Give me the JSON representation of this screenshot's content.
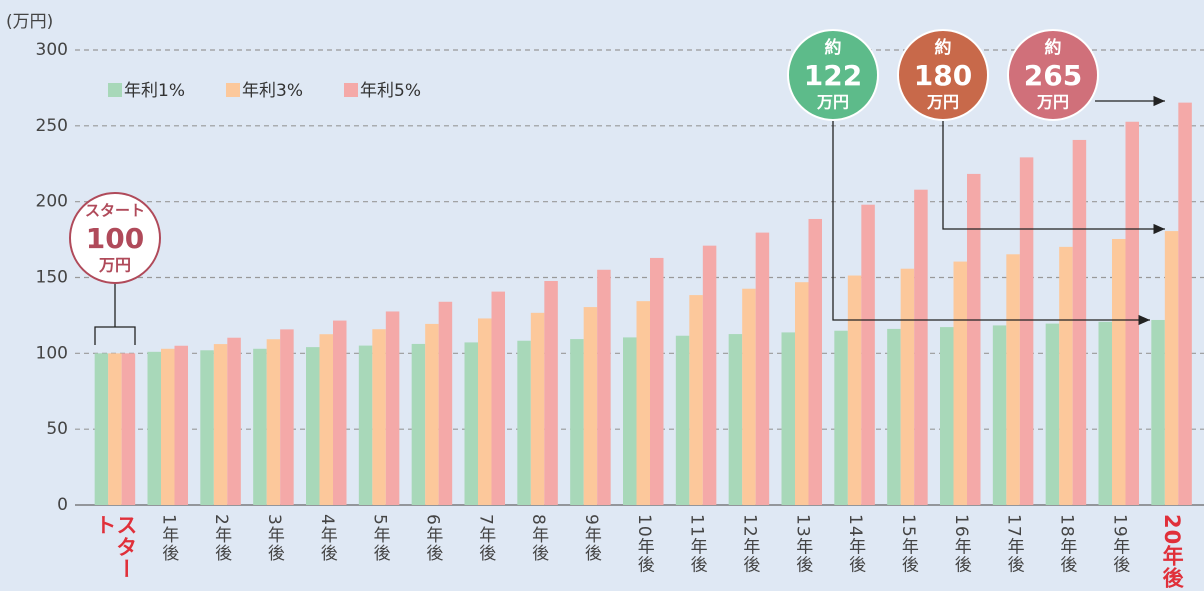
{
  "chart_data": {
    "type": "bar",
    "ylabel": "(万円)",
    "categories": [
      "スタート",
      "1年後",
      "2年後",
      "3年後",
      "4年後",
      "5年後",
      "6年後",
      "7年後",
      "8年後",
      "9年後",
      "10年後",
      "11年後",
      "12年後",
      "13年後",
      "14年後",
      "15年後",
      "16年後",
      "17年後",
      "18年後",
      "19年後",
      "20年後"
    ],
    "series": [
      {
        "name": "年利1%",
        "color": "#a8d8b9",
        "values": [
          100,
          101,
          102,
          103,
          104.1,
          105.1,
          106.2,
          107.2,
          108.3,
          109.4,
          110.5,
          111.6,
          112.7,
          113.8,
          114.9,
          116.1,
          117.3,
          118.4,
          119.6,
          120.8,
          122
        ]
      },
      {
        "name": "年利3%",
        "color": "#fcc89b",
        "values": [
          100,
          103,
          106.1,
          109.3,
          112.6,
          115.9,
          119.4,
          123,
          126.7,
          130.5,
          134.4,
          138.4,
          142.6,
          146.9,
          151.3,
          155.8,
          160.5,
          165.3,
          170.2,
          175.4,
          180.6
        ]
      },
      {
        "name": "年利5%",
        "color": "#f4a9a8",
        "values": [
          100,
          105,
          110.3,
          115.8,
          121.6,
          127.6,
          134,
          140.7,
          147.7,
          155.1,
          162.9,
          171,
          179.6,
          188.6,
          198,
          207.9,
          218.3,
          229.2,
          240.7,
          252.7,
          265.3
        ]
      }
    ],
    "ylim": [
      0,
      300
    ],
    "yticks": [
      0,
      50,
      100,
      150,
      200,
      250,
      300
    ],
    "grid": true,
    "legend": "top-left",
    "annotations": [
      {
        "lines": [
          "スタート",
          "100",
          "万円"
        ],
        "color": "#b04a5a"
      },
      {
        "lines": [
          "約",
          "122",
          "万円"
        ],
        "color": "#5dbb8a"
      },
      {
        "lines": [
          "約",
          "180",
          "万円"
        ],
        "color": "#c8694a"
      },
      {
        "lines": [
          "約",
          "265",
          "万円"
        ],
        "color": "#d0707a"
      }
    ]
  }
}
